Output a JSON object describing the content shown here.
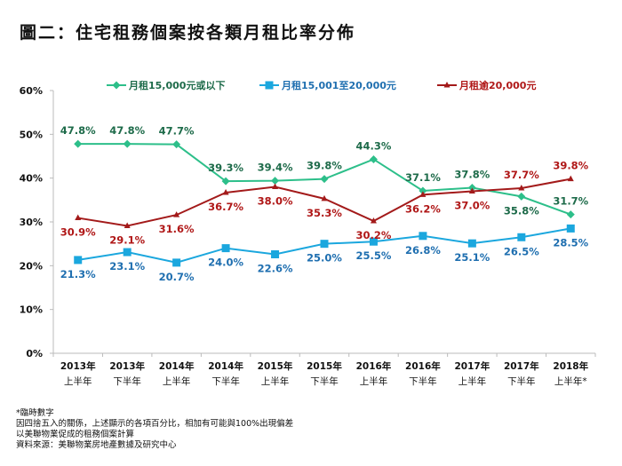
{
  "title": "圖二：住宅租務個案按各類月租比率分佈",
  "notes": [
    "*臨時數字",
    "因四捨五入的關係，上述顯示的各項百分比，相加有可能與100%出現偏差",
    "以美聯物業促成的租務個案計算",
    "資料來源：美聯物業房地產數據及研究中心"
  ],
  "chart_data": {
    "type": "line",
    "title": "圖二：住宅租務個案按各類月租比率分佈",
    "xlabel": "",
    "ylabel": "",
    "ylim": [
      0,
      60
    ],
    "yticks": [
      "0%",
      "10%",
      "20%",
      "30%",
      "40%",
      "50%",
      "60%"
    ],
    "ytick_values": [
      0,
      10,
      20,
      30,
      40,
      50,
      60
    ],
    "grid": false,
    "legend_position": "top",
    "categories": [
      [
        "2013年",
        "上半年"
      ],
      [
        "2013年",
        "下半年"
      ],
      [
        "2014年",
        "上半年"
      ],
      [
        "2014年",
        "下半年"
      ],
      [
        "2015年",
        "上半年"
      ],
      [
        "2015年",
        "下半年"
      ],
      [
        "2016年",
        "上半年"
      ],
      [
        "2016年",
        "下半年"
      ],
      [
        "2017年",
        "上半年"
      ],
      [
        "2017年",
        "下半年"
      ],
      [
        "2018年",
        "上半年*"
      ]
    ],
    "series": [
      {
        "name": "月租15,000元或以下",
        "color": "#2dbf8a",
        "label_color": "#1e6b4a",
        "marker": "diamond",
        "values": [
          47.8,
          47.8,
          47.7,
          39.3,
          39.4,
          39.8,
          44.3,
          37.1,
          37.8,
          35.8,
          31.7
        ],
        "labels": [
          "47.8%",
          "47.8%",
          "47.7%",
          "39.3%",
          "39.4%",
          "39.8%",
          "44.3%",
          "37.1%",
          "37.8%",
          "35.8%",
          "31.7%"
        ],
        "label_pos": [
          "above",
          "above",
          "above",
          "above",
          "above",
          "above",
          "above",
          "above",
          "above",
          "below",
          "above"
        ]
      },
      {
        "name": "月租15,001至20,000元",
        "color": "#1ba7de",
        "label_color": "#1f6fb0",
        "marker": "square",
        "values": [
          21.3,
          23.1,
          20.7,
          24.0,
          22.6,
          25.0,
          25.5,
          26.8,
          25.1,
          26.5,
          28.5
        ],
        "labels": [
          "21.3%",
          "23.1%",
          "20.7%",
          "24.0%",
          "22.6%",
          "25.0%",
          "25.5%",
          "26.8%",
          "25.1%",
          "26.5%",
          "28.5%"
        ],
        "label_pos": [
          "below",
          "below",
          "below",
          "below",
          "below",
          "below",
          "below",
          "below",
          "below",
          "below",
          "below"
        ]
      },
      {
        "name": "月租逾20,000元",
        "color": "#a31a1a",
        "label_color": "#b01818",
        "marker": "triangle",
        "values": [
          30.9,
          29.1,
          31.6,
          36.7,
          38.0,
          35.3,
          30.2,
          36.2,
          37.0,
          37.7,
          39.8
        ],
        "labels": [
          "30.9%",
          "29.1%",
          "31.6%",
          "36.7%",
          "38.0%",
          "35.3%",
          "30.2%",
          "36.2%",
          "37.0%",
          "37.7%",
          "39.8%"
        ],
        "label_pos": [
          "below",
          "below",
          "below",
          "below",
          "below",
          "below",
          "below",
          "below",
          "below",
          "above",
          "above"
        ]
      }
    ]
  }
}
